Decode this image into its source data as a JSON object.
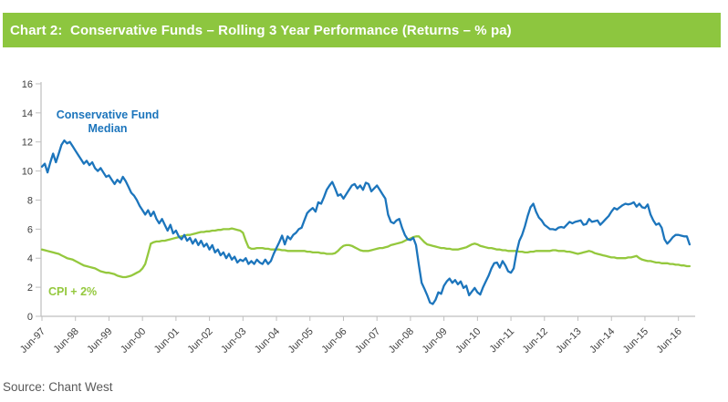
{
  "header": {
    "title": "Chart 2:  Conservative Funds – Rolling 3 Year Performance (Returns – % pa)"
  },
  "source": {
    "text": "Source: Chant West"
  },
  "colors": {
    "header_green": "#8DC63F",
    "fund_blue": "#1C75BC",
    "cpi_green": "#94C83D",
    "axis_gray": "#BFBFBF",
    "tick_label_gray": "#404040"
  },
  "chart_data": {
    "type": "line",
    "title": "Conservative Funds – Rolling 3 Year Performance (Returns – % pa)",
    "xlabel": "",
    "ylabel": "",
    "ylim": [
      0,
      16
    ],
    "y_ticks": [
      0,
      2,
      4,
      6,
      8,
      10,
      12,
      14,
      16
    ],
    "grid": false,
    "legend_position": "in-plot text labels",
    "x_frequency": "monthly",
    "x_extent": [
      "Jun-97",
      "Oct-16"
    ],
    "x_tick_labels": [
      "Jun-97",
      "Jun-98",
      "Jun-99",
      "Jun-00",
      "Jun-01",
      "Jun-02",
      "Jun-03",
      "Jun-04",
      "Jun-05",
      "Jun-06",
      "Jun-07",
      "Jun-08",
      "Jun-09",
      "Jun-10",
      "Jun-11",
      "Jun-12",
      "Jun-13",
      "Jun-14",
      "Jun-15",
      "Jun-16"
    ],
    "series": [
      {
        "name": "Conservative Fund Median",
        "label_lines": [
          "Conservative Fund",
          "Median"
        ],
        "color": "#1C75BC",
        "values": [
          10.3,
          10.5,
          9.9,
          10.6,
          11.2,
          10.6,
          11.2,
          11.8,
          12.1,
          11.9,
          12.0,
          11.7,
          11.4,
          11.1,
          10.8,
          10.5,
          10.7,
          10.4,
          10.6,
          10.2,
          10.0,
          10.2,
          9.9,
          9.6,
          9.7,
          9.4,
          9.1,
          9.4,
          9.2,
          9.6,
          9.3,
          8.9,
          8.5,
          8.3,
          8.0,
          7.6,
          7.3,
          7.0,
          7.3,
          6.9,
          7.2,
          6.7,
          6.4,
          6.7,
          6.3,
          5.9,
          6.3,
          5.7,
          5.9,
          5.5,
          5.3,
          5.6,
          5.2,
          5.4,
          5.0,
          5.3,
          4.9,
          5.2,
          4.8,
          5.0,
          4.6,
          4.9,
          4.4,
          4.6,
          4.2,
          4.4,
          4.0,
          4.3,
          3.9,
          4.1,
          3.7,
          3.9,
          3.8,
          4.0,
          3.6,
          3.8,
          3.6,
          3.9,
          3.7,
          3.6,
          3.9,
          3.6,
          3.8,
          4.3,
          4.7,
          5.1,
          5.55,
          4.95,
          5.5,
          5.3,
          5.6,
          5.75,
          6.0,
          6.1,
          6.6,
          7.1,
          7.3,
          7.45,
          7.2,
          7.85,
          7.75,
          8.2,
          8.7,
          9.0,
          9.25,
          8.8,
          8.3,
          8.4,
          8.1,
          8.4,
          8.7,
          9.0,
          9.1,
          8.8,
          9.0,
          8.7,
          9.2,
          9.1,
          8.6,
          8.8,
          9.0,
          8.7,
          8.4,
          8.1,
          7.0,
          6.5,
          6.4,
          6.6,
          6.7,
          6.1,
          5.6,
          5.3,
          5.25,
          5.4,
          4.9,
          3.55,
          2.3,
          1.9,
          1.45,
          0.95,
          0.85,
          1.15,
          1.65,
          1.55,
          2.1,
          2.4,
          2.6,
          2.3,
          2.5,
          2.2,
          2.4,
          1.95,
          2.1,
          1.45,
          1.7,
          1.95,
          1.65,
          1.5,
          2.0,
          2.4,
          2.8,
          3.3,
          3.65,
          3.7,
          3.35,
          3.8,
          3.5,
          3.1,
          3.0,
          3.3,
          4.4,
          5.2,
          5.6,
          6.2,
          6.9,
          7.5,
          7.75,
          7.2,
          6.8,
          6.6,
          6.3,
          6.15,
          6.0,
          6.0,
          5.95,
          6.1,
          6.15,
          6.1,
          6.3,
          6.5,
          6.4,
          6.5,
          6.55,
          6.6,
          6.3,
          6.35,
          6.7,
          6.5,
          6.55,
          6.6,
          6.3,
          6.5,
          6.7,
          6.9,
          7.2,
          7.45,
          7.35,
          7.5,
          7.65,
          7.75,
          7.7,
          7.75,
          7.85,
          7.55,
          7.75,
          7.5,
          7.45,
          7.7,
          7.0,
          6.6,
          6.3,
          6.4,
          6.1,
          5.3,
          5.0,
          5.2,
          5.45,
          5.6,
          5.6,
          5.55,
          5.5,
          5.5,
          4.95
        ]
      },
      {
        "name": "CPI + 2%",
        "label": "CPI + 2%",
        "color": "#94C83D",
        "values": [
          4.6,
          4.55,
          4.5,
          4.45,
          4.4,
          4.35,
          4.3,
          4.2,
          4.1,
          4.0,
          3.95,
          3.9,
          3.8,
          3.7,
          3.6,
          3.5,
          3.45,
          3.4,
          3.35,
          3.3,
          3.2,
          3.1,
          3.05,
          3.0,
          3.0,
          2.95,
          2.9,
          2.8,
          2.75,
          2.7,
          2.7,
          2.75,
          2.8,
          2.9,
          3.0,
          3.1,
          3.3,
          3.6,
          4.3,
          5.0,
          5.1,
          5.15,
          5.15,
          5.2,
          5.2,
          5.25,
          5.3,
          5.35,
          5.4,
          5.45,
          5.5,
          5.55,
          5.6,
          5.6,
          5.65,
          5.7,
          5.75,
          5.8,
          5.8,
          5.85,
          5.85,
          5.9,
          5.9,
          5.95,
          5.95,
          6.0,
          6.0,
          6.0,
          6.05,
          6.0,
          5.95,
          5.9,
          5.75,
          5.2,
          4.75,
          4.65,
          4.65,
          4.7,
          4.7,
          4.7,
          4.65,
          4.65,
          4.6,
          4.6,
          4.6,
          4.6,
          4.55,
          4.55,
          4.5,
          4.5,
          4.5,
          4.5,
          4.5,
          4.5,
          4.5,
          4.45,
          4.45,
          4.4,
          4.4,
          4.4,
          4.35,
          4.35,
          4.3,
          4.3,
          4.3,
          4.35,
          4.5,
          4.7,
          4.85,
          4.9,
          4.9,
          4.85,
          4.75,
          4.65,
          4.55,
          4.5,
          4.5,
          4.5,
          4.55,
          4.6,
          4.65,
          4.7,
          4.7,
          4.75,
          4.8,
          4.9,
          4.95,
          5.0,
          5.05,
          5.1,
          5.2,
          5.3,
          5.35,
          5.45,
          5.5,
          5.5,
          5.3,
          5.1,
          4.95,
          4.9,
          4.85,
          4.8,
          4.75,
          4.7,
          4.7,
          4.65,
          4.65,
          4.6,
          4.6,
          4.6,
          4.65,
          4.7,
          4.75,
          4.85,
          4.95,
          5.0,
          4.95,
          4.85,
          4.8,
          4.75,
          4.7,
          4.7,
          4.65,
          4.6,
          4.6,
          4.55,
          4.55,
          4.5,
          4.5,
          4.5,
          4.5,
          4.45,
          4.45,
          4.4,
          4.4,
          4.45,
          4.45,
          4.5,
          4.5,
          4.5,
          4.5,
          4.5,
          4.5,
          4.55,
          4.55,
          4.5,
          4.5,
          4.5,
          4.45,
          4.45,
          4.4,
          4.35,
          4.3,
          4.35,
          4.4,
          4.45,
          4.5,
          4.45,
          4.35,
          4.3,
          4.25,
          4.2,
          4.15,
          4.1,
          4.05,
          4.05,
          4.0,
          4.0,
          4.0,
          4.0,
          4.05,
          4.05,
          4.1,
          4.15,
          4.0,
          3.9,
          3.85,
          3.8,
          3.8,
          3.75,
          3.7,
          3.7,
          3.65,
          3.65,
          3.65,
          3.6,
          3.6,
          3.55,
          3.55,
          3.5,
          3.5,
          3.45,
          3.45
        ]
      }
    ]
  }
}
